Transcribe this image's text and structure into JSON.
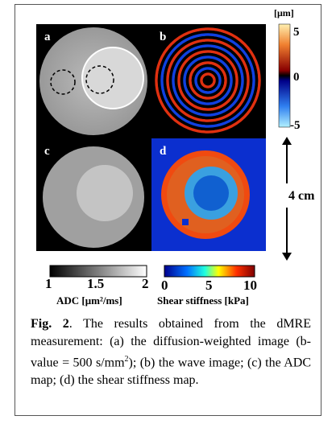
{
  "panels": [
    "a",
    "b",
    "c",
    "d"
  ],
  "wave_colorbar": {
    "unit": "[μm]",
    "ticks": [
      "5",
      "0",
      "-5"
    ]
  },
  "scale_bar": "4 cm",
  "adc_colorbar": {
    "ticks": [
      "1",
      "1.5",
      "2"
    ],
    "label": "ADC [μm²/ms]"
  },
  "stiffness_colorbar": {
    "ticks": [
      "0",
      "5",
      "10"
    ],
    "label": "Shear stiffness [kPa]"
  },
  "caption": {
    "label": "Fig. 2",
    "text_before": ". The results obtained from the dMRE measurement: (a) the diffusion-weighted image (b-value = 500 s/mm",
    "superscript": "2",
    "text_after": "); (b) the wave image; (c) the ADC map; (d) the shear stiffness map."
  }
}
